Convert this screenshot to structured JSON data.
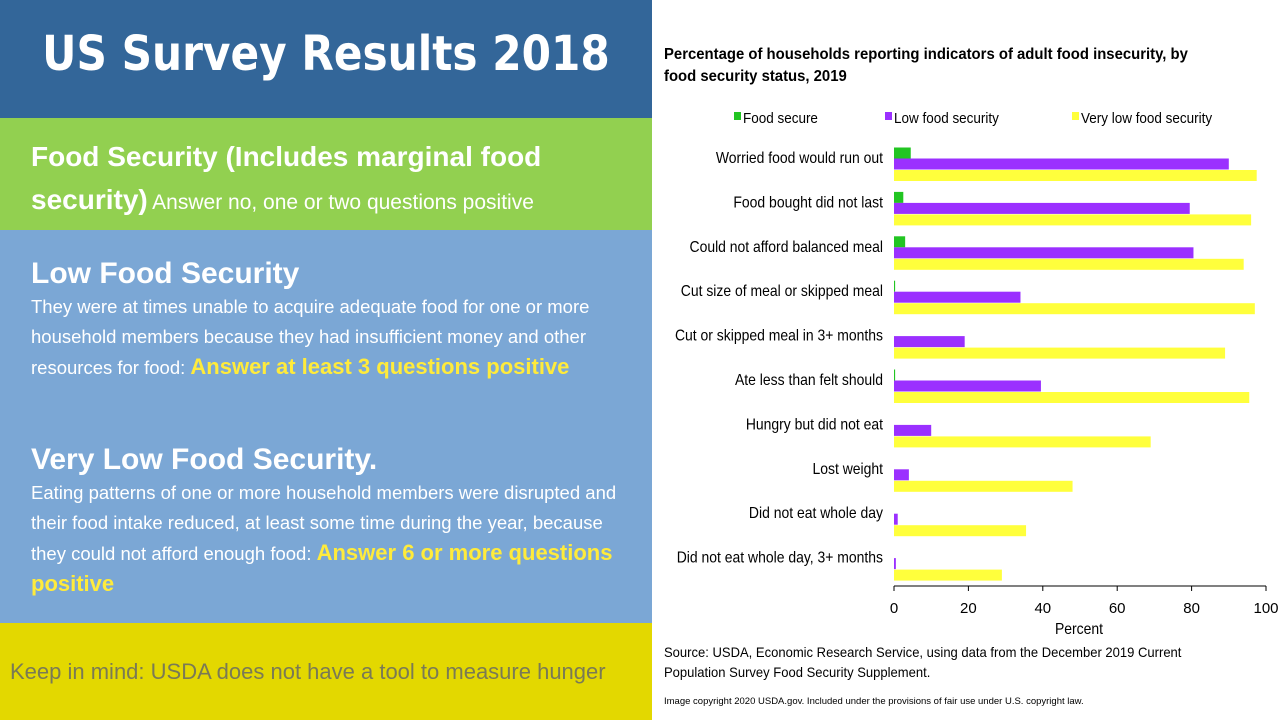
{
  "header": {
    "title": "US Survey Results 2018"
  },
  "food_security": {
    "heading": "Food Security (Includes marginal food security)",
    "note": "Answer no, one or two questions positive"
  },
  "low_food_security": {
    "heading": "Low Food Security",
    "body": "They were at times unable to acquire adequate food for one or more household members because they had insufficient money and other resources for food:",
    "highlight": "Answer at least 3 questions positive"
  },
  "very_low_food_security": {
    "heading": "Very Low Food Security.",
    "body": "Eating patterns of one or more household members were disrupted and their food intake reduced, at least some time during the year, because they could not afford enough food:",
    "highlight": "Answer 6 or more questions positive"
  },
  "footer": {
    "note": "Keep in mind: USDA does not have a tool to measure hunger"
  },
  "chart_data": {
    "type": "bar",
    "orientation": "horizontal",
    "title": "Percentage of households reporting indicators of adult food insecurity, by food security status, 2019",
    "xlabel": "Percent",
    "ylabel": "",
    "xlim": [
      0,
      100
    ],
    "xticks": [
      "0",
      "20",
      "40",
      "60",
      "80",
      "100"
    ],
    "legend_position": "top",
    "categories": [
      "Worried food would run out",
      "Food bought did not last",
      "Could not afford balanced meal",
      "Cut size of meal or skipped meal",
      "Cut or skipped meal in 3+ months",
      "Ate less than felt should",
      "Hungry but did not eat",
      "Lost weight",
      "Did not eat whole day",
      "Did not eat whole day, 3+ months"
    ],
    "series": [
      {
        "name": "Food secure",
        "color": "#22c522",
        "values": [
          4.5,
          2.5,
          3,
          0.3,
          0,
          0.3,
          0,
          0,
          0,
          0
        ]
      },
      {
        "name": "Low food security",
        "color": "#9b30ff",
        "values": [
          90,
          79.5,
          80.5,
          34,
          19,
          39.5,
          10,
          4,
          1,
          0.5
        ]
      },
      {
        "name": "Very low food security",
        "color": "#ffff3c",
        "values": [
          97.5,
          96,
          94,
          97,
          89,
          95.5,
          69,
          48,
          35.5,
          29
        ]
      }
    ],
    "source": "Source: USDA, Economic Research Service, using data from the December 2019 Current Population Survey Food Security Supplement.",
    "copyright": "Image copyright 2020 USDA.gov. Included under the provisions of fair use under U.S. copyright law."
  }
}
